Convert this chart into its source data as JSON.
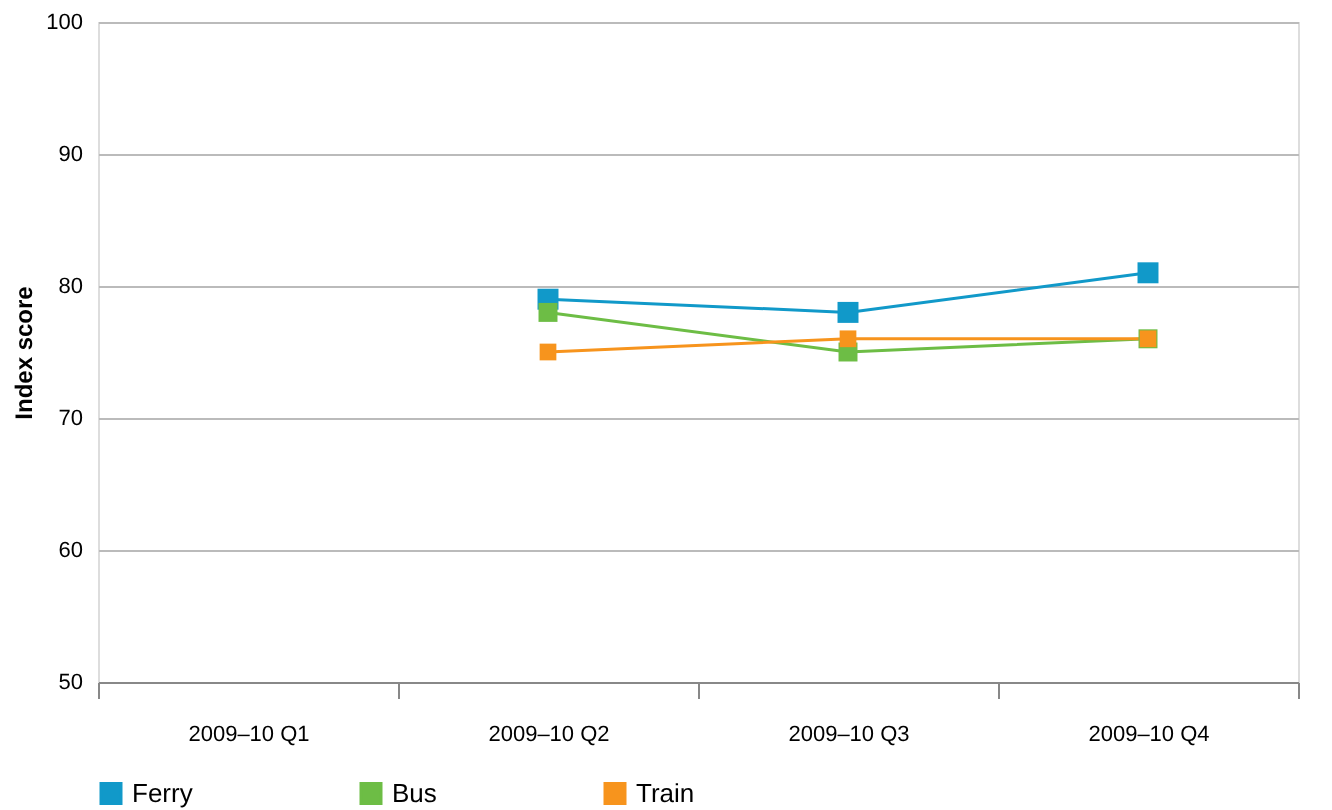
{
  "chart_data": {
    "type": "line",
    "ylabel": "Index score",
    "categories": [
      "2009–10 Q1",
      "2009–10 Q2",
      "2009–10 Q3",
      "2009–10 Q4"
    ],
    "series": [
      {
        "name": "Ferry",
        "color": "#1199c9",
        "values": [
          null,
          79,
          78,
          81
        ]
      },
      {
        "name": "Bus",
        "color": "#6dbd45",
        "values": [
          null,
          78,
          75,
          76
        ]
      },
      {
        "name": "Train",
        "color": "#f7941d",
        "values": [
          null,
          75,
          76,
          76
        ]
      }
    ],
    "ylim": [
      50,
      100
    ],
    "yticks": [
      50,
      60,
      70,
      80,
      90,
      100
    ],
    "grid": "y",
    "legend": "bottom",
    "marker": "square",
    "line_style": "solid"
  }
}
